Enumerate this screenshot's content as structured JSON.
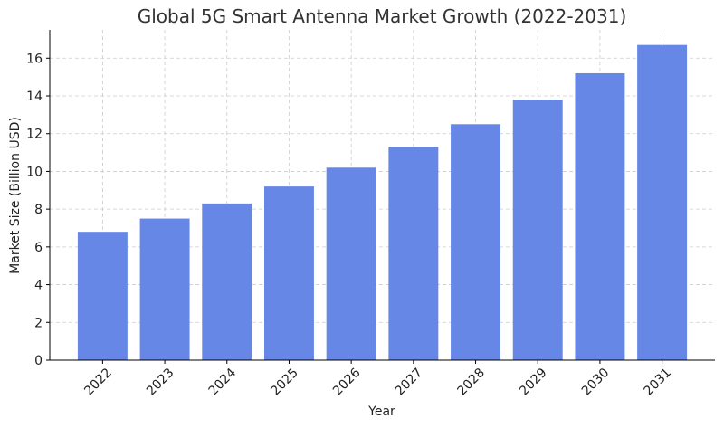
{
  "chart_data": {
    "type": "bar",
    "title": "Global 5G Smart Antenna Market Growth (2022-2031)",
    "xlabel": "Year",
    "ylabel": "Market Size (Billion USD)",
    "categories": [
      "2022",
      "2023",
      "2024",
      "2025",
      "2026",
      "2027",
      "2028",
      "2029",
      "2030",
      "2031"
    ],
    "values": [
      6.8,
      7.5,
      8.3,
      9.2,
      10.2,
      11.3,
      12.5,
      13.8,
      15.2,
      16.7
    ],
    "ylim": [
      0,
      17.5
    ],
    "yticks": [
      0,
      2,
      4,
      6,
      8,
      10,
      12,
      14,
      16
    ],
    "grid": true,
    "bar_color": "#6687e5"
  }
}
